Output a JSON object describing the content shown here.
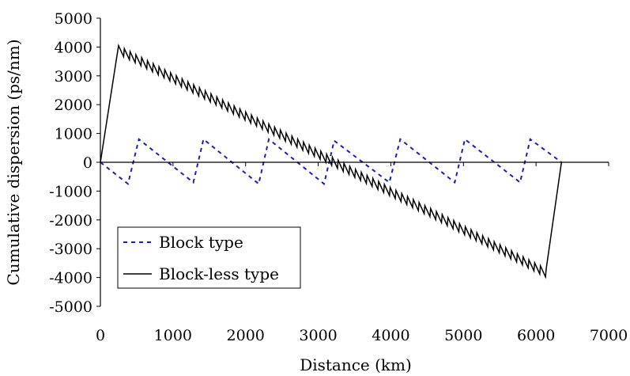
{
  "chart_data": {
    "type": "line",
    "title": "",
    "xlabel": "Distance (km)",
    "ylabel": "Cumulative dispersion (ps/nm)",
    "xlim": [
      0,
      7000
    ],
    "ylim": [
      -5000,
      5000
    ],
    "x_ticks": [
      "0",
      "1000",
      "2000",
      "3000",
      "4000",
      "5000",
      "6000",
      "7000"
    ],
    "y_ticks": [
      "5000",
      "4000",
      "3000",
      "2000",
      "1000",
      "0",
      "-1000",
      "-2000",
      "-3000",
      "-4000",
      "-5000"
    ],
    "grid": false,
    "legend_position": "bottom-left",
    "series": [
      {
        "name": "Block type",
        "color": "#1f1fa8",
        "style": "dashed",
        "points": [
          [
            0,
            0
          ],
          [
            380,
            -750
          ],
          [
            530,
            800
          ],
          [
            1280,
            -700
          ],
          [
            1420,
            800
          ],
          [
            2180,
            -750
          ],
          [
            2320,
            800
          ],
          [
            3080,
            -750
          ],
          [
            3220,
            750
          ],
          [
            3980,
            -700
          ],
          [
            4130,
            800
          ],
          [
            4880,
            -700
          ],
          [
            5020,
            800
          ],
          [
            5780,
            -700
          ],
          [
            5920,
            800
          ],
          [
            6350,
            0
          ]
        ]
      },
      {
        "name": "Block-less type",
        "color": "#000000",
        "style": "solid",
        "sawtooth": {
          "peak_x": 250,
          "peak_y": 4050,
          "end_x": 6140,
          "end_y": -3700,
          "period_km": 80,
          "amplitude": 280
        },
        "points": [
          [
            0,
            0
          ],
          [
            250,
            4050
          ],
          [
            6140,
            -3700
          ],
          [
            6350,
            0
          ]
        ]
      }
    ]
  }
}
